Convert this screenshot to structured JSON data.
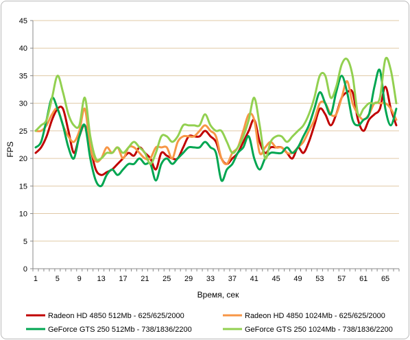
{
  "chart_data": {
    "type": "line",
    "title": "",
    "xlabel": "Время, сек",
    "ylabel": "FPS",
    "ylim": [
      0,
      45
    ],
    "y_ticks": [
      0,
      5,
      10,
      15,
      20,
      25,
      30,
      35,
      40,
      45
    ],
    "x_ticks": [
      1,
      5,
      9,
      13,
      17,
      21,
      25,
      29,
      33,
      37,
      41,
      45,
      49,
      53,
      57,
      61,
      65
    ],
    "xlim": [
      1,
      67
    ],
    "grid": true,
    "legend_position": "bottom",
    "x": [
      1,
      2,
      3,
      4,
      5,
      6,
      7,
      8,
      9,
      10,
      11,
      12,
      13,
      14,
      15,
      16,
      17,
      18,
      19,
      20,
      21,
      22,
      23,
      24,
      25,
      26,
      27,
      28,
      29,
      30,
      31,
      32,
      33,
      34,
      35,
      36,
      37,
      38,
      39,
      40,
      41,
      42,
      43,
      44,
      45,
      46,
      47,
      48,
      49,
      50,
      51,
      52,
      53,
      54,
      55,
      56,
      57,
      58,
      59,
      60,
      61,
      62,
      63,
      64,
      65,
      66,
      67
    ],
    "series": [
      {
        "name": "Radeon HD 4850 512Mb - 625/625/2000",
        "color": "#c00000",
        "values": [
          21,
          22,
          24,
          27,
          29,
          29,
          25,
          21,
          24,
          26,
          22,
          18,
          17,
          17.5,
          18,
          19,
          20,
          21,
          20.5,
          22,
          21,
          20,
          18,
          21,
          20.5,
          20,
          20,
          22,
          24,
          24,
          24,
          25,
          24,
          23,
          20,
          19,
          20,
          21,
          23,
          25,
          27,
          23,
          21,
          22,
          22,
          22,
          21,
          20,
          22,
          21,
          23,
          26,
          29,
          28,
          26,
          28,
          31,
          32,
          32,
          27,
          25,
          27,
          28,
          29,
          33,
          29,
          26
        ]
      },
      {
        "name": "Radeon HD 4850 1024Mb - 625/625/2000",
        "color": "#f79646",
        "values": [
          25,
          25,
          26,
          28,
          29,
          26,
          24,
          23,
          25,
          29,
          22,
          19.5,
          20,
          22,
          21,
          22,
          20,
          22,
          22,
          21,
          20,
          20,
          22,
          22,
          22,
          20,
          23,
          24,
          24,
          24,
          25,
          26,
          25,
          24,
          20,
          19,
          21,
          22,
          25,
          28,
          27,
          21,
          22,
          23,
          22,
          22,
          21,
          21,
          22,
          23,
          25,
          27,
          30,
          30,
          28,
          28,
          31,
          34,
          30,
          28,
          27,
          28,
          30,
          30,
          30,
          29,
          27
        ]
      },
      {
        "name": "GeForce GTS 250 512Mb - 738/1836/2200",
        "color": "#00a651",
        "values": [
          22,
          23,
          27,
          31,
          29,
          26,
          22,
          20,
          24,
          26,
          20,
          16,
          15,
          17,
          18,
          17,
          18,
          19,
          19,
          20,
          19,
          19,
          16,
          19,
          20,
          19,
          20,
          21,
          22,
          22,
          22,
          23,
          22,
          21,
          16,
          18,
          19,
          21,
          22,
          24,
          20,
          18,
          20,
          21,
          21,
          21,
          22,
          21,
          22,
          24,
          26,
          29,
          32,
          30,
          28,
          32,
          35,
          32,
          27,
          26,
          27,
          28,
          33,
          36,
          29,
          26,
          29
        ]
      },
      {
        "name": "GeForce GTS 250 1024Mb - 738/1836/2200",
        "color": "#92d050",
        "values": [
          25,
          26,
          27,
          31,
          35,
          32,
          28,
          26,
          26,
          31,
          24,
          20,
          20,
          21,
          21,
          22,
          21,
          22,
          23,
          22,
          21,
          19,
          21,
          24,
          24,
          23,
          24,
          26,
          26,
          26,
          26,
          28,
          26,
          25,
          25,
          23,
          21,
          22,
          24,
          27,
          31,
          26,
          20,
          23,
          24,
          24,
          23,
          24,
          25,
          26,
          28,
          31,
          35,
          35,
          31,
          33,
          37,
          38,
          35,
          28,
          29,
          30,
          30,
          31,
          38,
          36,
          30
        ]
      }
    ]
  }
}
